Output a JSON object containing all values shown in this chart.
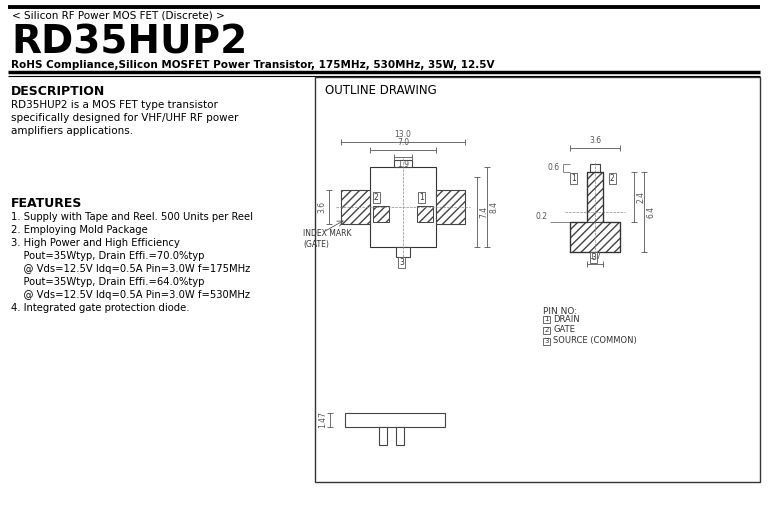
{
  "bg_color": "#ffffff",
  "title_small": "< Silicon RF Power MOS FET (Discrete) >",
  "title_large": "RD35HUP2",
  "title_sub": "RoHS Compliance,Silicon MOSFET Power Transistor, 175MHz, 530MHz, 35W, 12.5V",
  "desc_title": "DESCRIPTION",
  "desc_body": "RD35HUP2 is a MOS FET type transistor\nspecifically designed for VHF/UHF RF power\namplifiers applications.",
  "feat_title": "FEATURES",
  "feat_items": [
    "1. Supply with Tape and Reel. 500 Units per Reel",
    "2. Employing Mold Package",
    "3. High Power and High Efficiency",
    "    Pout=35Wtyp, Drain Effi.=70.0%typ",
    "    @ Vds=12.5V Idq=0.5A Pin=3.0W f=175MHz",
    "    Pout=35Wtyp, Drain Effi.=64.0%typ",
    "    @ Vds=12.5V Idq=0.5A Pin=3.0W f=530MHz",
    "4. Integrated gate protection diode."
  ],
  "outline_title": "OUTLINE DRAWING",
  "pins": [
    [
      "1",
      "DRAIN"
    ],
    [
      "2",
      "GATE"
    ],
    [
      "3",
      "SOURCE (COMMON)"
    ]
  ]
}
